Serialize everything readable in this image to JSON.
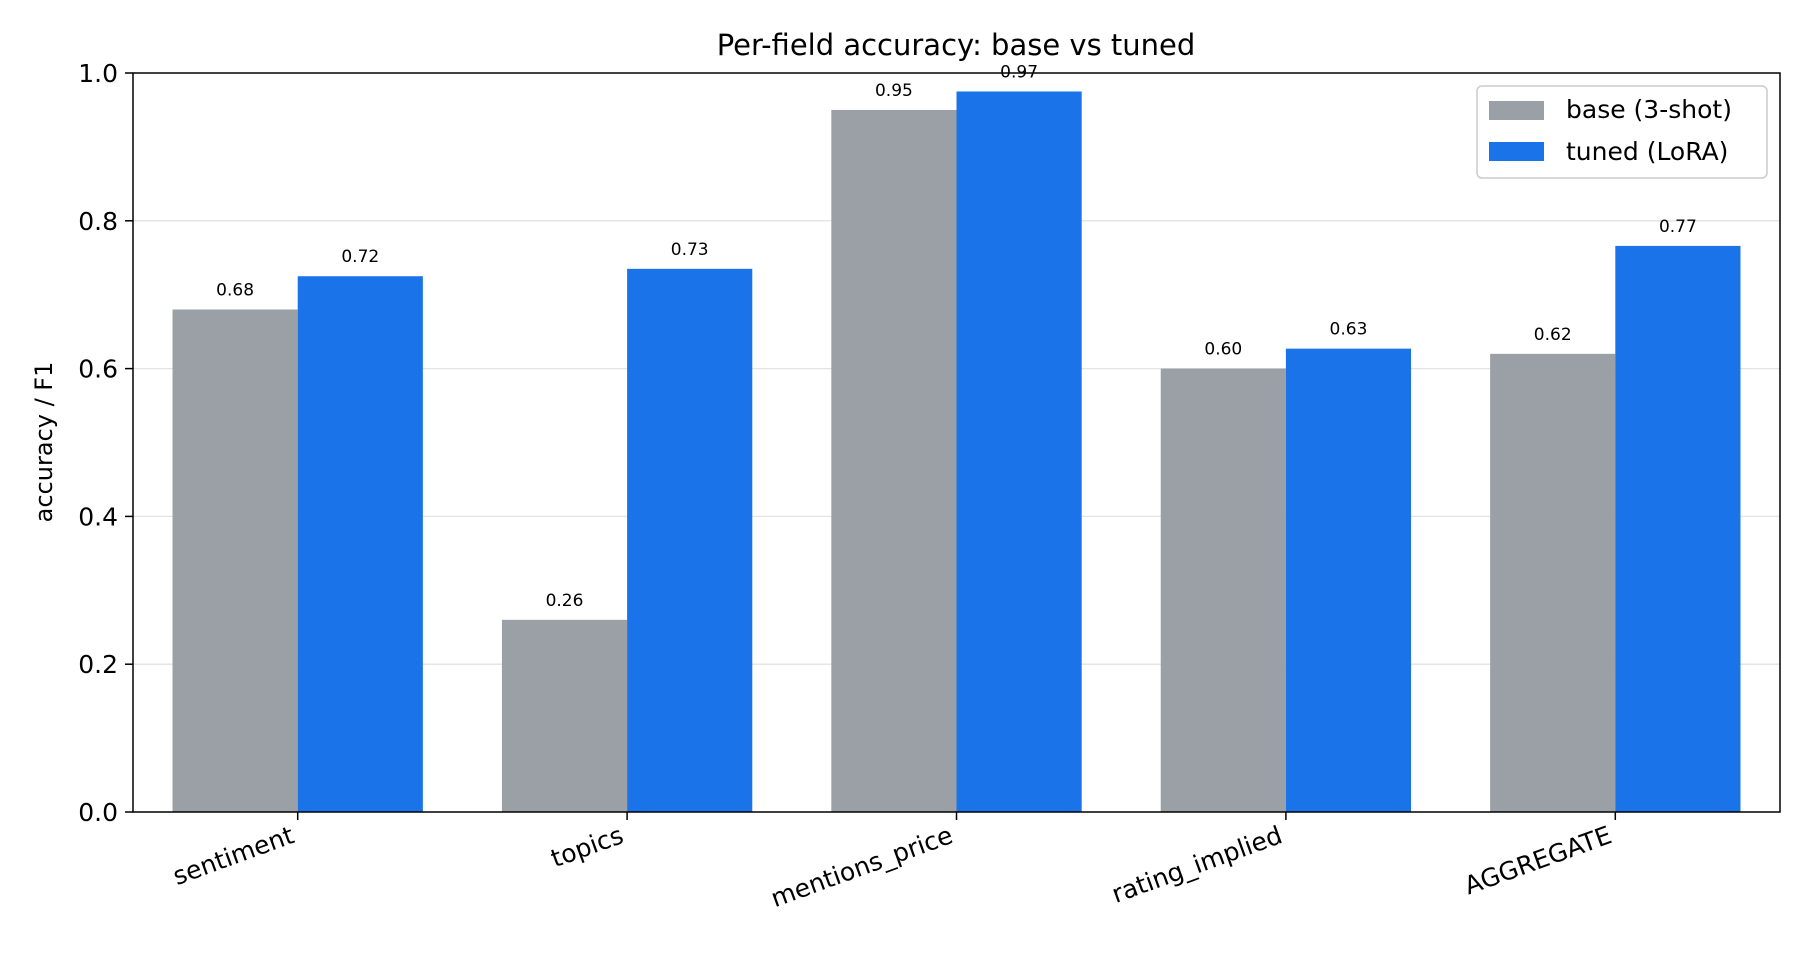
{
  "chart_data": {
    "type": "bar",
    "title": "Per-field accuracy: base vs tuned",
    "xlabel": "",
    "ylabel": "accuracy / F1",
    "ylim": [
      0,
      1.0
    ],
    "yticks": [
      0.0,
      0.2,
      0.4,
      0.6,
      0.8,
      1.0
    ],
    "ytick_labels": [
      "0.0",
      "0.2",
      "0.4",
      "0.6",
      "0.8",
      "1.0"
    ],
    "grid": "y",
    "legend_position": "top-right",
    "categories": [
      "sentiment",
      "topics",
      "mentions_price",
      "rating_implied",
      "AGGREGATE"
    ],
    "series": [
      {
        "name": "base (3-shot)",
        "color": "#9aa0a6",
        "values": [
          0.68,
          0.26,
          0.95,
          0.6,
          0.62
        ],
        "value_labels": [
          "0.68",
          "0.26",
          "0.95",
          "0.60",
          "0.62"
        ]
      },
      {
        "name": "tuned (LoRA)",
        "color": "#1a73e8",
        "values": [
          0.725,
          0.735,
          0.975,
          0.627,
          0.766
        ],
        "value_labels": [
          "0.72",
          "0.73",
          "0.97",
          "0.63",
          "0.77"
        ]
      }
    ]
  }
}
